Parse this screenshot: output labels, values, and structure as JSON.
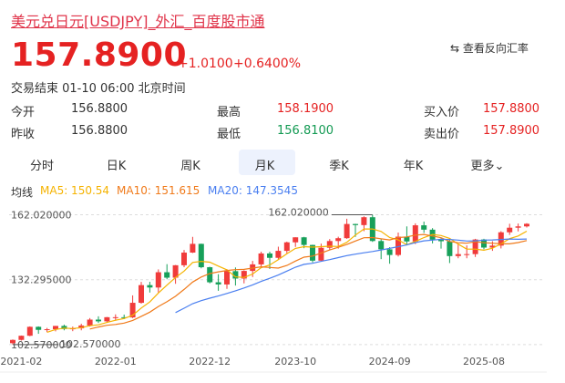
{
  "header": {
    "title": "美元兑日元[USDJPY]_外汇_百度股市通",
    "reverse_link": "⇆ 查看反向汇率"
  },
  "quote": {
    "price": "157.8900",
    "change": "+1.0100",
    "change_pct": "+0.6400%",
    "status": "交易结束 01-10 06:00 北京时间"
  },
  "stats": [
    [
      "今开",
      "156.8800",
      "最高",
      "158.1900",
      "买入价",
      "157.8800"
    ],
    [
      "昨收",
      "156.8800",
      "最低",
      "156.8100",
      "卖出价",
      "157.8900"
    ]
  ],
  "tabs": [
    "分时",
    "日K",
    "周K",
    "月K",
    "季K",
    "年K",
    "更多⌄"
  ],
  "ma_legend": [
    "均线",
    "MA5: 150.54",
    "MA10: 151.615",
    "MA20: 147.3545"
  ],
  "chart_data": {
    "type": "candlestick",
    "categories": [
      null,
      "2021-02",
      null,
      null,
      null,
      null,
      null,
      null,
      null,
      null,
      null,
      null,
      "2022-01",
      null,
      null,
      null,
      null,
      null,
      null,
      null,
      null,
      null,
      null,
      "2022-12",
      null,
      null,
      null,
      null,
      null,
      null,
      null,
      null,
      null,
      "2023-10",
      null,
      null,
      null,
      null,
      null,
      null,
      null,
      null,
      null,
      null,
      "2024-09",
      null,
      null,
      null,
      null,
      null,
      null,
      null,
      null,
      null,
      null,
      "2025-08",
      null,
      null,
      null,
      null,
      null
    ],
    "open": [
      103.2,
      104.7,
      106.6,
      110.7,
      109.3,
      109.6,
      111.1,
      109.7,
      110.0,
      111.3,
      114.0,
      113.2,
      115.1,
      115.1,
      115.0,
      121.7,
      129.8,
      128.7,
      135.7,
      133.2,
      138.9,
      144.7,
      148.7,
      138.0,
      131.1,
      130.1,
      136.2,
      132.8,
      136.3,
      139.3,
      144.3,
      142.3,
      145.5,
      149.4,
      151.7,
      148.2,
      141.0,
      146.9,
      150.0,
      151.3,
      157.8,
      157.3,
      160.9,
      150.0,
      146.2,
      143.6,
      152.0,
      149.8,
      157.2,
      155.2,
      150.6,
      149.9,
      143.1,
      144.0,
      144.0,
      150.7,
      147.0,
      147.9,
      154.0,
      156.1,
      156.7
    ],
    "close": [
      104.7,
      106.6,
      110.7,
      109.3,
      109.6,
      111.1,
      109.7,
      110.0,
      111.3,
      114.0,
      113.2,
      115.1,
      115.1,
      115.0,
      121.7,
      129.8,
      128.7,
      135.7,
      133.2,
      138.9,
      144.7,
      148.7,
      138.0,
      131.1,
      130.1,
      136.2,
      132.8,
      136.3,
      139.3,
      144.3,
      142.3,
      145.5,
      149.4,
      151.7,
      148.2,
      141.0,
      146.9,
      150.0,
      151.3,
      157.8,
      157.3,
      160.9,
      150.0,
      146.2,
      143.6,
      152.0,
      149.8,
      157.2,
      155.2,
      150.6,
      149.9,
      143.1,
      144.0,
      144.0,
      150.7,
      147.0,
      147.9,
      154.0,
      156.1,
      156.7,
      157.89
    ],
    "high": [
      104.9,
      106.7,
      110.9,
      110.9,
      110.2,
      111.1,
      111.7,
      110.8,
      112.1,
      114.7,
      115.5,
      115.2,
      116.4,
      116.3,
      125.1,
      131.3,
      131.3,
      137.0,
      139.4,
      139.0,
      145.9,
      151.9,
      148.8,
      138.2,
      134.8,
      137.1,
      137.9,
      136.6,
      140.9,
      145.1,
      145.1,
      147.4,
      149.7,
      151.7,
      151.9,
      148.3,
      148.8,
      150.9,
      151.97,
      160.2,
      157.9,
      161.3,
      162.02,
      150.9,
      147.2,
      153.9,
      156.7,
      158.1,
      158.9,
      155.9,
      151.3,
      150.5,
      148.6,
      148.0,
      151.0,
      151.0,
      149.9,
      154.5,
      157.9,
      158.0,
      158.19
    ],
    "low": [
      102.57,
      104.4,
      106.4,
      107.5,
      108.3,
      108.6,
      109.1,
      108.7,
      109.1,
      110.8,
      112.5,
      112.5,
      113.5,
      114.2,
      114.7,
      121.3,
      126.4,
      126.4,
      132.5,
      130.4,
      138.0,
      144.5,
      137.5,
      130.6,
      127.2,
      128.1,
      129.6,
      130.6,
      133.5,
      138.4,
      137.2,
      141.5,
      144.4,
      147.3,
      146.7,
      140.2,
      140.8,
      145.9,
      146.5,
      151.0,
      151.9,
      154.5,
      149.6,
      141.7,
      139.6,
      142.9,
      148.0,
      148.6,
      153.7,
      148.9,
      146.5,
      139.9,
      142.1,
      142.1,
      142.7,
      146.2,
      145.5,
      146.6,
      152.8,
      154.4,
      156.2
    ],
    "up_color": "#f03b3b",
    "down_color": "#17a05a",
    "ma_series": [
      {
        "color": "#f5b300",
        "values": [
          null,
          null,
          null,
          null,
          108.2,
          109.5,
          110.1,
          109.9,
          110.3,
          111.2,
          111.6,
          112.7,
          113.7,
          114.5,
          116.0,
          119.3,
          122.1,
          126.2,
          129.8,
          133.3,
          136.2,
          140.2,
          140.7,
          140.3,
          138.5,
          136.8,
          133.6,
          133.3,
          134.9,
          137.8,
          139.0,
          141.5,
          144.2,
          146.6,
          147.4,
          147.2,
          147.4,
          147.6,
          147.5,
          149.4,
          152.7,
          155.5,
          155.5,
          154.4,
          151.6,
          150.5,
          148.3,
          149.8,
          151.6,
          153.0,
          152.5,
          151.2,
          148.6,
          146.3,
          146.3,
          145.8,
          146.7,
          148.7,
          151.1,
          152.3,
          154.5
        ]
      },
      {
        "color": "#f07a1a",
        "values": [
          null,
          null,
          null,
          null,
          null,
          null,
          null,
          null,
          null,
          109.7,
          110.6,
          111.4,
          111.8,
          112.4,
          113.6,
          115.5,
          117.4,
          120.0,
          122.2,
          124.7,
          127.8,
          131.2,
          133.5,
          135.1,
          135.9,
          136.5,
          136.9,
          137.0,
          137.6,
          138.2,
          137.9,
          137.6,
          138.8,
          140.8,
          142.6,
          143.1,
          144.5,
          145.9,
          147.1,
          148.4,
          150.0,
          151.5,
          151.6,
          151.0,
          150.5,
          151.6,
          151.9,
          152.7,
          153.0,
          152.3,
          151.5,
          149.8,
          149.2,
          149.0,
          149.7,
          149.2,
          149.0,
          148.7,
          148.7,
          149.3,
          150.2
        ]
      },
      {
        "color": "#4a7ff0",
        "values": [
          null,
          null,
          null,
          null,
          null,
          null,
          null,
          null,
          null,
          null,
          null,
          null,
          null,
          null,
          null,
          null,
          null,
          null,
          null,
          117.2,
          119.2,
          121.3,
          122.7,
          123.8,
          124.8,
          126.0,
          127.2,
          128.5,
          129.9,
          131.5,
          132.9,
          134.4,
          136.2,
          138.0,
          139.3,
          139.8,
          140.7,
          141.5,
          142.4,
          143.3,
          144.0,
          144.6,
          145.2,
          145.9,
          146.6,
          147.4,
          148.2,
          149.3,
          150.1,
          150.4,
          150.8,
          150.7,
          150.4,
          150.0,
          150.1,
          150.4,
          150.5,
          150.7,
          150.9,
          150.8,
          150.9
        ]
      }
    ],
    "ylim": [
      100,
      166
    ],
    "yticks": [
      {
        "value": 162.02,
        "label": "162.020000"
      },
      {
        "value": 132.295,
        "label": "132.295000"
      },
      {
        "value": 102.57,
        "label": "102.570000"
      }
    ],
    "annotations": {
      "max": "162.020000",
      "min": "102.570000"
    },
    "grid": true
  }
}
